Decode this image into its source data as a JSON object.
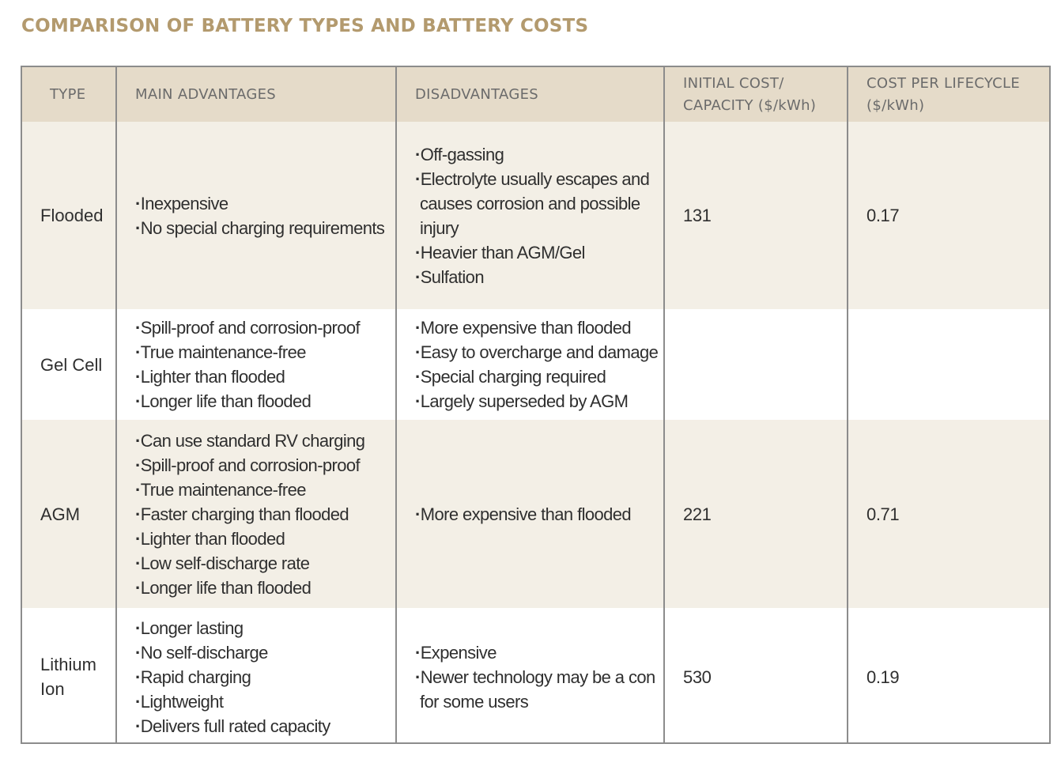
{
  "title": "COMPARISON OF BATTERY TYPES AND BATTERY COSTS",
  "headers": {
    "type": "TYPE",
    "advantages": "MAIN ADVANTAGES",
    "disadvantages": "DISADVANTAGES",
    "initial_cost": "INITIAL COST/ CAPACITY ($/kWh)",
    "lifecycle_cost": "COST PER LIFECYCLE ($/kWh)"
  },
  "rows": [
    {
      "type": "Flooded",
      "advantages": [
        "Inexpensive",
        "No special charging requirements"
      ],
      "disadvantages": [
        "Off-gassing",
        "Electrolyte usually escapes and causes corrosion and possible injury",
        "Heavier than AGM/Gel",
        "Sulfation"
      ],
      "initial_cost": "131",
      "lifecycle_cost": "0.17"
    },
    {
      "type": "Gel Cell",
      "advantages": [
        "Spill-proof and corrosion-proof",
        "True maintenance-free",
        "Lighter than flooded",
        "Longer life than flooded"
      ],
      "disadvantages": [
        "More expensive than flooded",
        "Easy to overcharge and damage",
        "Special charging required",
        "Largely superseded by AGM"
      ],
      "initial_cost": "",
      "lifecycle_cost": ""
    },
    {
      "type": "AGM",
      "advantages": [
        "Can use standard RV charging",
        "Spill-proof and corrosion-proof",
        "True maintenance-free",
        "Faster charging than flooded",
        "Lighter than flooded",
        "Low self-discharge rate",
        "Longer life than flooded"
      ],
      "disadvantages": [
        "More expensive than flooded"
      ],
      "initial_cost": "221",
      "lifecycle_cost": "0.71"
    },
    {
      "type": "Lithium Ion",
      "advantages": [
        "Longer lasting",
        "No self-discharge",
        "Rapid charging",
        "Lightweight",
        "Delivers full rated capacity"
      ],
      "disadvantages": [
        "Expensive",
        "Newer technology may be a con for some users"
      ],
      "initial_cost": "530",
      "lifecycle_cost": "0.19"
    }
  ]
}
